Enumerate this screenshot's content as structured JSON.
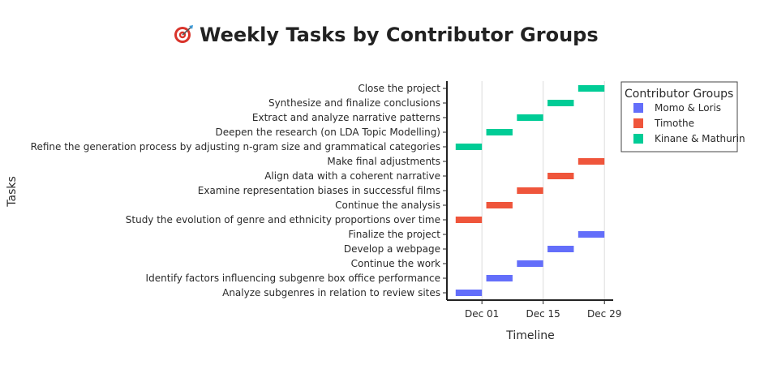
{
  "chart_data": {
    "type": "gantt",
    "title": "Weekly Tasks by Contributor Groups",
    "title_icon": "target-icon",
    "xlabel": "Timeline",
    "ylabel": "Tasks",
    "x_ticks": [
      "Dec 01",
      "Dec 15",
      "Dec 29"
    ],
    "xlim": [
      "2024-11-23",
      "2024-12-31"
    ],
    "gridlines": "vertical",
    "legend": {
      "title": "Contributor Groups",
      "placement": "right",
      "entries": [
        {
          "name": "Momo & Loris",
          "color": "#636efa"
        },
        {
          "name": "Timothe",
          "color": "#ef553b"
        },
        {
          "name": "Kinane & Mathurin",
          "color": "#00cc96"
        }
      ]
    },
    "tasks": [
      {
        "task": "Analyze subgenres in relation to review sites",
        "group": "Momo & Loris",
        "start": "2024-11-25",
        "end": "2024-12-01"
      },
      {
        "task": "Identify factors influencing subgenre box office performance",
        "group": "Momo & Loris",
        "start": "2024-12-02",
        "end": "2024-12-08"
      },
      {
        "task": "Continue the work",
        "group": "Momo & Loris",
        "start": "2024-12-09",
        "end": "2024-12-15"
      },
      {
        "task": "Develop a webpage",
        "group": "Momo & Loris",
        "start": "2024-12-16",
        "end": "2024-12-22"
      },
      {
        "task": "Finalize the project",
        "group": "Momo & Loris",
        "start": "2024-12-23",
        "end": "2024-12-29"
      },
      {
        "task": "Study the evolution of genre and ethnicity proportions over time",
        "group": "Timothe",
        "start": "2024-11-25",
        "end": "2024-12-01"
      },
      {
        "task": "Continue the analysis",
        "group": "Timothe",
        "start": "2024-12-02",
        "end": "2024-12-08"
      },
      {
        "task": "Examine representation biases in successful films",
        "group": "Timothe",
        "start": "2024-12-09",
        "end": "2024-12-15"
      },
      {
        "task": "Align data with a coherent narrative",
        "group": "Timothe",
        "start": "2024-12-16",
        "end": "2024-12-22"
      },
      {
        "task": "Make final adjustments",
        "group": "Timothe",
        "start": "2024-12-23",
        "end": "2024-12-29"
      },
      {
        "task": "Refine the generation process by adjusting n-gram size and grammatical categories",
        "group": "Kinane & Mathurin",
        "start": "2024-11-25",
        "end": "2024-12-01"
      },
      {
        "task": "Deepen the research (on LDA Topic Modelling)",
        "group": "Kinane & Mathurin",
        "start": "2024-12-02",
        "end": "2024-12-08"
      },
      {
        "task": "Extract and analyze narrative patterns",
        "group": "Kinane & Mathurin",
        "start": "2024-12-09",
        "end": "2024-12-15"
      },
      {
        "task": "Synthesize and finalize conclusions",
        "group": "Kinane & Mathurin",
        "start": "2024-12-16",
        "end": "2024-12-22"
      },
      {
        "task": "Close the project",
        "group": "Kinane & Mathurin",
        "start": "2024-12-23",
        "end": "2024-12-29"
      }
    ]
  }
}
